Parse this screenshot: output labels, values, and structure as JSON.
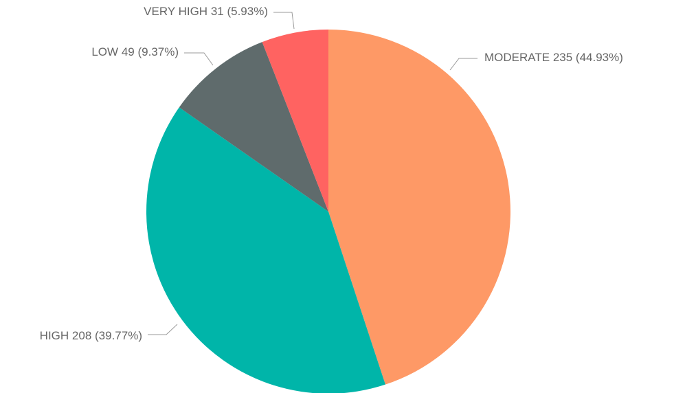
{
  "chart_data": {
    "type": "pie",
    "categories": [
      "MODERATE",
      "HIGH",
      "LOW",
      "VERY HIGH"
    ],
    "values": [
      235,
      208,
      49,
      31
    ],
    "percent_labels": [
      "(44.93%)",
      "(39.77%)",
      "(9.37%)",
      "(5.93%)"
    ],
    "colors": [
      "#fe9966",
      "#00b5a9",
      "#5f6b6c",
      "#ff6361"
    ]
  }
}
